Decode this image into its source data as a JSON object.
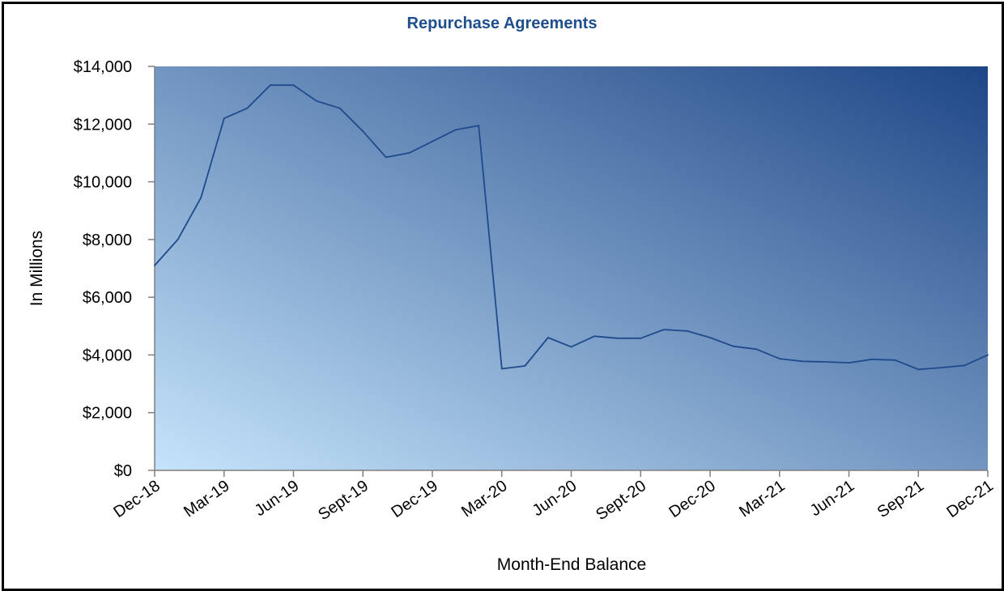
{
  "chart_data": {
    "type": "line",
    "title": "Repurchase Agreements",
    "xlabel": "Month-End Balance",
    "ylabel": "In Millions",
    "ylim": [
      0,
      14000
    ],
    "yticks": [
      0,
      2000,
      4000,
      6000,
      8000,
      10000,
      12000,
      14000
    ],
    "ytick_labels": [
      "$0",
      "$2,000",
      "$4,000",
      "$6,000",
      "$8,000",
      "$10,000",
      "$12,000",
      "$14,000"
    ],
    "xtick_labels": [
      "Dec-18",
      "Mar-19",
      "Jun-19",
      "Sept-19",
      "Dec-19",
      "Mar-20",
      "Jun-20",
      "Sept-20",
      "Dec-20",
      "Mar-21",
      "Jun-21",
      "Sep-21",
      "Dec-21"
    ],
    "x": [
      "Dec-18",
      "Jan-19",
      "Feb-19",
      "Mar-19",
      "Apr-19",
      "May-19",
      "Jun-19",
      "Jul-19",
      "Aug-19",
      "Sep-19",
      "Oct-19",
      "Nov-19",
      "Dec-19",
      "Jan-20",
      "Feb-20",
      "Mar-20",
      "Apr-20",
      "May-20",
      "Jun-20",
      "Jul-20",
      "Aug-20",
      "Sep-20",
      "Oct-20",
      "Nov-20",
      "Dec-20",
      "Jan-21",
      "Feb-21",
      "Mar-21",
      "Apr-21",
      "May-21",
      "Jun-21",
      "Jul-21",
      "Aug-21",
      "Sep-21",
      "Oct-21",
      "Nov-21",
      "Dec-21"
    ],
    "series": [
      {
        "values": [
          7100,
          8000,
          9450,
          12200,
          12550,
          13350,
          13350,
          12800,
          12550,
          11750,
          10850,
          11000,
          11400,
          11800,
          11950,
          3520,
          3620,
          4600,
          4280,
          4650,
          4580,
          4580,
          4880,
          4830,
          4600,
          4300,
          4200,
          3870,
          3780,
          3760,
          3730,
          3850,
          3820,
          3500,
          3560,
          3640,
          4000
        ]
      }
    ],
    "grid": false,
    "legend": "none",
    "colors": {
      "line": "#1F4A8C",
      "title": "#1F4E8C",
      "gradient_light": "#C5E4FB",
      "gradient_dark": "#1E4686"
    }
  }
}
